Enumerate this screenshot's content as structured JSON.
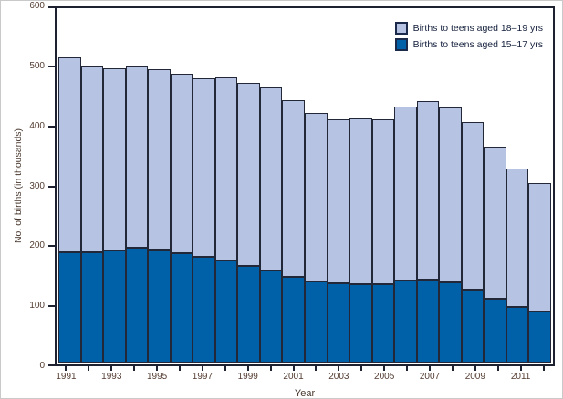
{
  "figure": {
    "y_axis_title": "No. of births (in thousands)",
    "x_axis_title": "Year",
    "y_ticks": [
      0,
      100,
      200,
      300,
      400,
      500,
      600
    ],
    "x_tick_labels": [
      "1991",
      "1993",
      "1995",
      "1997",
      "1999",
      "2001",
      "2003",
      "2005",
      "2007",
      "2009",
      "2011"
    ]
  },
  "legend": {
    "items": [
      {
        "label": "Births to teens aged 18–19 yrs",
        "color": "#b7c3e2"
      },
      {
        "label": "Births to teens aged 15–17 yrs",
        "color": "#0161a8"
      }
    ]
  },
  "colors": {
    "bar_light": "#b7c3e2",
    "bar_dark": "#0161a8",
    "bar_border": "#232838",
    "axis_line": "#1d2130",
    "axis_text": "#533c31",
    "legend_text": "#14203c"
  },
  "chart_data": {
    "type": "bar",
    "stacked": true,
    "title": "",
    "xlabel": "Year",
    "ylabel": "No. of births (in thousands)",
    "ylim": [
      0,
      600
    ],
    "grid": false,
    "legend_position": "top-right-inside",
    "categories": [
      1991,
      1992,
      1993,
      1994,
      1995,
      1996,
      1997,
      1998,
      1999,
      2000,
      2001,
      2002,
      2003,
      2004,
      2005,
      2006,
      2007,
      2008,
      2009,
      2010,
      2011,
      2012
    ],
    "series": [
      {
        "name": "Births to teens aged 15–17 yrs",
        "color": "#0161a8",
        "values": [
          188.2,
          187.5,
          190.5,
          195.2,
          192.5,
          185.7,
          180.2,
          173.2,
          163.6,
          157.2,
          145.3,
          138.6,
          134.6,
          133.0,
          133.2,
          138.9,
          140.6,
          135.7,
          124.2,
          109.2,
          94.4,
          86.4
        ]
      },
      {
        "name": "Births to teens aged 18–19 yrs",
        "color": "#b7c3e2",
        "values": [
          331.4,
          317.9,
          310.6,
          310.3,
          307.4,
          305.9,
          303.1,
          311.7,
          312.4,
          311.8,
          300.6,
          286.9,
          280.0,
          282.3,
          281.4,
          296.5,
          304.3,
          299.1,
          285.6,
          258.5,
          235.4,
          219.0
        ]
      }
    ],
    "totals": [
      519.6,
      505.4,
      501.1,
      505.5,
      499.9,
      491.6,
      483.3,
      484.9,
      476.0,
      469.0,
      445.9,
      425.5,
      414.6,
      415.3,
      414.6,
      435.4,
      444.9,
      434.8,
      409.8,
      367.7,
      329.8,
      305.4
    ]
  }
}
